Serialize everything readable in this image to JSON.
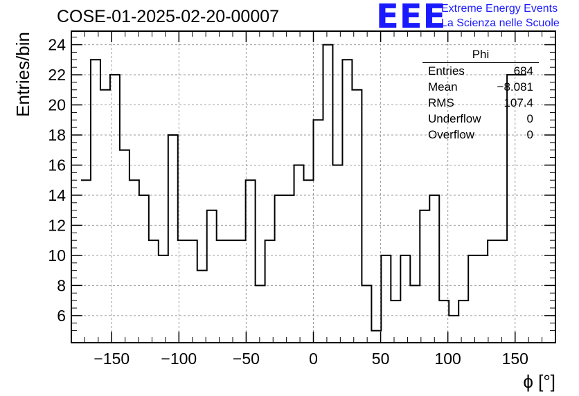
{
  "header": {
    "title": "COSE-01-2025-02-20-00007",
    "logo_text": "EEE",
    "logo_line1": "Extreme Energy Events",
    "logo_line2": "La Scienza nelle Scuole"
  },
  "stats_box": {
    "name": "Phi",
    "rows": [
      {
        "label": "Entries",
        "value": "684"
      },
      {
        "label": "Mean",
        "value": "−8.081"
      },
      {
        "label": "RMS",
        "value": "107.4"
      },
      {
        "label": "Underflow",
        "value": "0"
      },
      {
        "label": "Overflow",
        "value": "0"
      }
    ]
  },
  "chart_data": {
    "type": "histogram",
    "title": "COSE-01-2025-02-20-00007",
    "xlabel": "ϕ [°]",
    "ylabel": "Entries/bin",
    "xlim": [
      -180,
      180
    ],
    "ylim": [
      4.2,
      24.9
    ],
    "grid": true,
    "bin_width": 7.2,
    "bin_edges_start": -172.8,
    "values": [
      15,
      23,
      21,
      22,
      17,
      15,
      14,
      11,
      10,
      18,
      11,
      11,
      9,
      13,
      11,
      11,
      11,
      15,
      8,
      11,
      14,
      14,
      16,
      15,
      19,
      24,
      16,
      23,
      21,
      8,
      5,
      10,
      7,
      10,
      8,
      13,
      14,
      7,
      6,
      7,
      10,
      10,
      11,
      11,
      22,
      22
    ],
    "x_ticks": [
      -150,
      -100,
      -50,
      0,
      50,
      100,
      150
    ],
    "x_tick_labels": [
      "−150",
      "−100",
      "−50",
      "0",
      "50",
      "100",
      "150"
    ],
    "y_ticks": [
      6,
      8,
      10,
      12,
      14,
      16,
      18,
      20,
      22,
      24
    ],
    "y_tick_labels": [
      "6",
      "8",
      "10",
      "12",
      "14",
      "16",
      "18",
      "20",
      "22",
      "24"
    ]
  }
}
